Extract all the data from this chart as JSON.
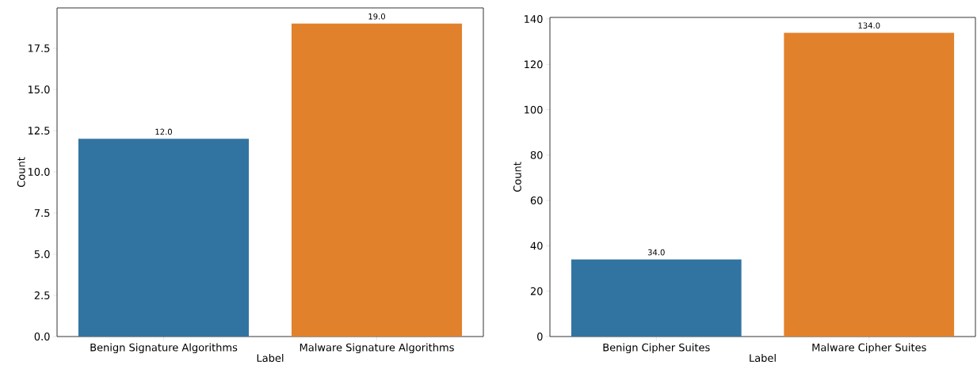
{
  "chart_data": [
    {
      "type": "bar",
      "xlabel": "Label",
      "ylabel": "Count",
      "categories": [
        "Benign Signature Algorithms",
        "Malware Signature Algorithms"
      ],
      "values": [
        12,
        19
      ],
      "colors": [
        "#3274a1",
        "#e1812c"
      ],
      "value_labels": [
        "12.0",
        "19.0"
      ],
      "ylim": [
        0,
        19.95
      ],
      "yticks": [
        {
          "value": 0,
          "label": "0.0"
        },
        {
          "value": 2.5,
          "label": "2.5"
        },
        {
          "value": 5,
          "label": "5.0"
        },
        {
          "value": 7.5,
          "label": "7.5"
        },
        {
          "value": 10,
          "label": "10.0"
        },
        {
          "value": 12.5,
          "label": "12.5"
        },
        {
          "value": 15,
          "label": "15.0"
        },
        {
          "value": 17.5,
          "label": "17.5"
        }
      ]
    },
    {
      "type": "bar",
      "xlabel": "Label",
      "ylabel": "Count",
      "categories": [
        "Benign Cipher Suites",
        "Malware Cipher Suites"
      ],
      "values": [
        34,
        134
      ],
      "colors": [
        "#3274a1",
        "#e1812c"
      ],
      "value_labels": [
        "34.0",
        "134.0"
      ],
      "ylim": [
        0,
        140.7
      ],
      "yticks": [
        0,
        20,
        40,
        60,
        80,
        100,
        120,
        140
      ]
    }
  ]
}
